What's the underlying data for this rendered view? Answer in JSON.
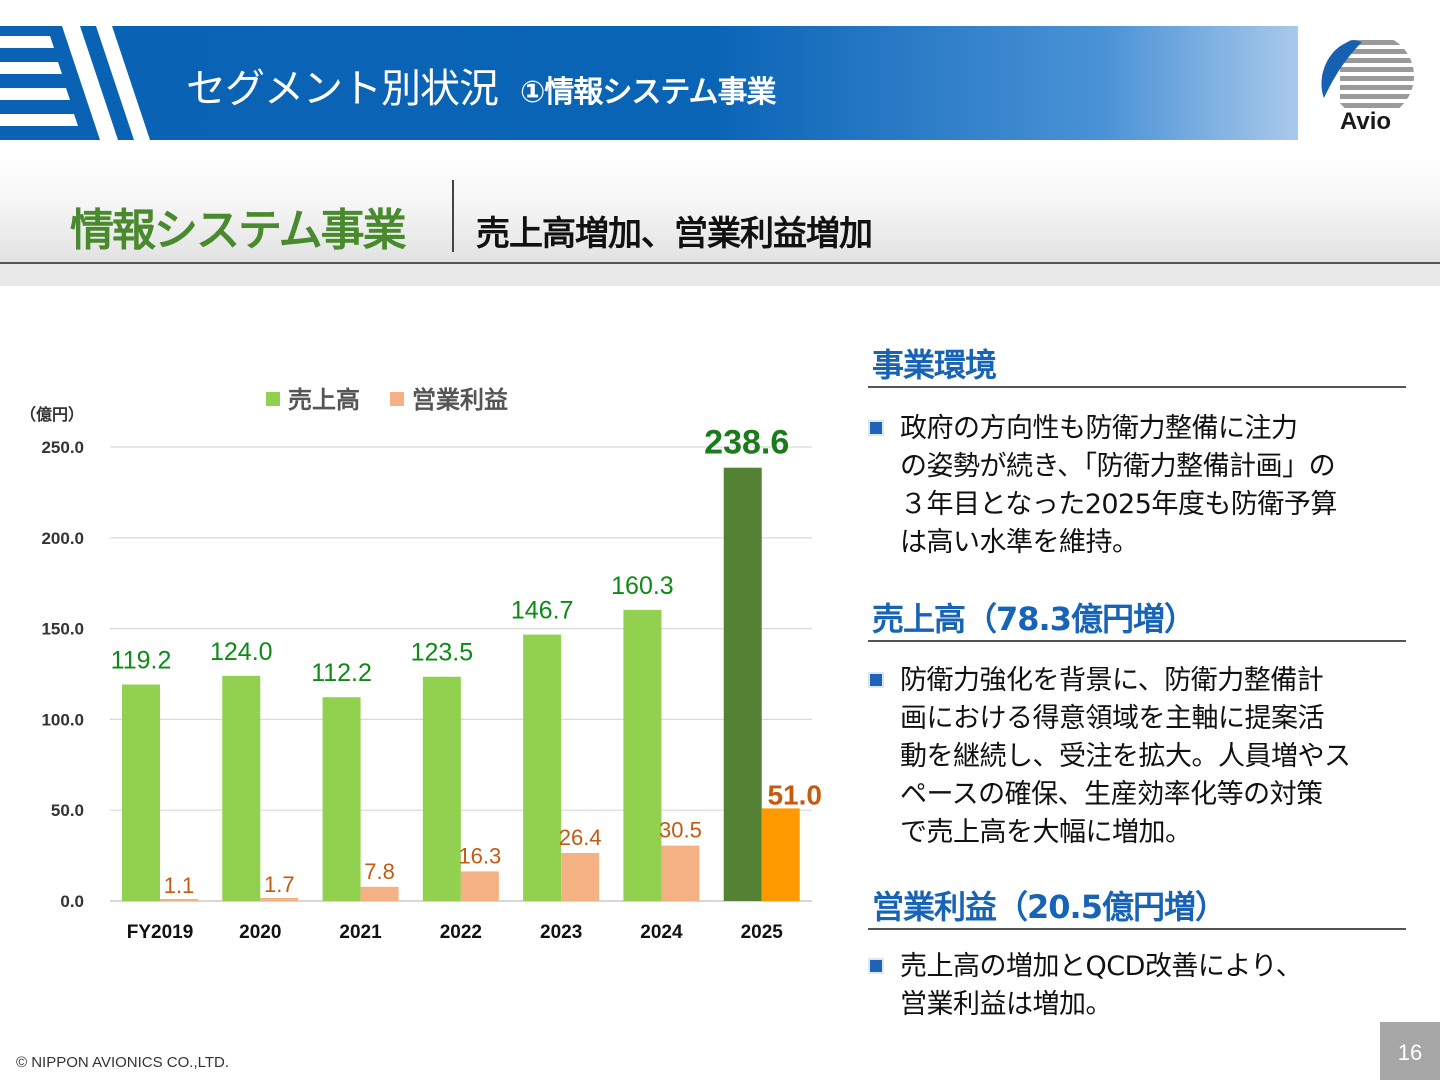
{
  "header": {
    "title": "セグメント別状況",
    "subtitle": "①情報システム事業",
    "logo_text": "Avio"
  },
  "section": {
    "name": "情報システム事業",
    "headline": "売上高増加、営業利益増加"
  },
  "chart_data": {
    "type": "bar",
    "unit_label": "（億円）",
    "categories": [
      "FY2019",
      "2020",
      "2021",
      "2022",
      "2023",
      "2024",
      "2025"
    ],
    "series": [
      {
        "name": "売上高",
        "values": [
          119.2,
          124.0,
          112.2,
          123.5,
          146.7,
          160.3,
          238.6
        ],
        "labels": [
          "119.2",
          "124.0",
          "112.2",
          "123.5",
          "146.7",
          "160.3",
          "238.6"
        ],
        "color": "#92d050",
        "highlight_color": "#548235",
        "label_color": "#0e8a16",
        "highlight_label_color": "#1b7a1b"
      },
      {
        "name": "営業利益",
        "values": [
          1.1,
          1.7,
          7.8,
          16.3,
          26.4,
          30.5,
          51.0
        ],
        "labels": [
          "1.1",
          "1.7",
          "7.8",
          "16.3",
          "26.4",
          "30.5",
          "51.0"
        ],
        "color": "#f4b183",
        "highlight_color": "#ff9900",
        "label_color": "#c55a11",
        "highlight_label_color": "#c55a11"
      }
    ],
    "highlight_index": 6,
    "yticks": [
      "0.0",
      "50.0",
      "100.0",
      "150.0",
      "200.0",
      "250.0"
    ],
    "ylim": [
      0,
      250
    ],
    "grid": true,
    "legend": "top"
  },
  "panel": {
    "sections": [
      {
        "heading": "事業環境",
        "text": "政府の方向性も防衛力整備に注力\nの姿勢が続き、「防衛力整備計画」の\n３年目となった2025年度も防衛予算\nは高い水準を維持。"
      },
      {
        "heading": "売上高（78.3億円増）",
        "text": "防衛力強化を背景に、防衛力整備計\n画における得意領域を主軸に提案活\n動を継続し、受注を拡大。人員増やス\nペースの確保、生産効率化等の対策\nで売上高を大幅に増加。"
      },
      {
        "heading": "営業利益（20.5億円増）",
        "text": "売上高の増加とQCD改善により、\n営業利益は増加。"
      }
    ]
  },
  "footer": {
    "copyright": "© NIPPON AVIONICS CO.,LTD.",
    "page": "16"
  },
  "colors": {
    "brand_blue": "#0a64b6",
    "section_green": "#4a8a2e",
    "heading_blue": "#1763b5"
  }
}
